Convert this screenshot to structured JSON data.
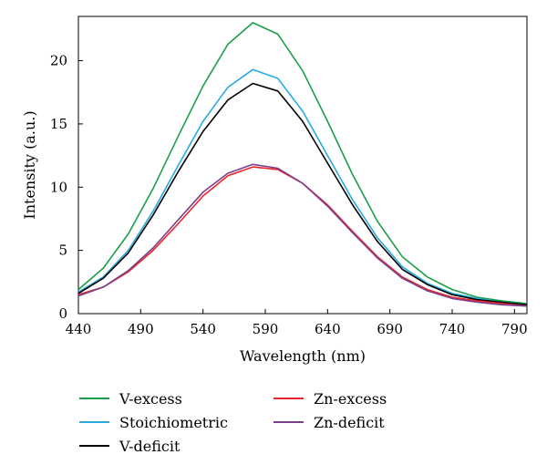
{
  "chart_data": {
    "type": "line",
    "title": "",
    "xlabel": "Wavelength (nm)",
    "ylabel": "Intensity (a.u.)",
    "xlim": [
      440,
      800
    ],
    "ylim": [
      0,
      23.5
    ],
    "xticks": [
      440,
      490,
      540,
      590,
      640,
      690,
      740,
      790
    ],
    "yticks": [
      0,
      5,
      10,
      15,
      20
    ],
    "grid": false,
    "legend_position": "bottom",
    "series": [
      {
        "name": "V-excess",
        "color": "#1a9f4a",
        "x": [
          440,
          460,
          480,
          500,
          520,
          540,
          560,
          580,
          600,
          620,
          640,
          660,
          680,
          700,
          720,
          740,
          760,
          780,
          800
        ],
        "y": [
          1.9,
          3.6,
          6.3,
          9.9,
          14.0,
          18.0,
          21.3,
          23.0,
          22.1,
          19.2,
          15.2,
          11.0,
          7.3,
          4.5,
          2.9,
          1.9,
          1.3,
          1.0,
          0.8
        ]
      },
      {
        "name": "Stoichiometric",
        "color": "#29abe2",
        "x": [
          440,
          460,
          480,
          500,
          520,
          540,
          560,
          580,
          600,
          620,
          640,
          660,
          680,
          700,
          720,
          740,
          760,
          780,
          800
        ],
        "y": [
          1.7,
          2.9,
          5.0,
          8.1,
          11.7,
          15.2,
          17.9,
          19.3,
          18.6,
          16.0,
          12.5,
          9.0,
          6.0,
          3.7,
          2.4,
          1.6,
          1.2,
          0.9,
          0.7
        ]
      },
      {
        "name": "V-deficit",
        "color": "#000000",
        "x": [
          440,
          460,
          480,
          500,
          520,
          540,
          560,
          580,
          600,
          620,
          640,
          660,
          680,
          700,
          720,
          740,
          760,
          780,
          800
        ],
        "y": [
          1.6,
          2.8,
          4.8,
          7.8,
          11.2,
          14.4,
          16.9,
          18.2,
          17.6,
          15.2,
          11.9,
          8.6,
          5.7,
          3.5,
          2.3,
          1.5,
          1.1,
          0.9,
          0.7
        ]
      },
      {
        "name": "Zn-excess",
        "color": "#e8262b",
        "x": [
          440,
          460,
          480,
          500,
          520,
          540,
          560,
          580,
          600,
          620,
          640,
          660,
          680,
          700,
          720,
          740,
          760,
          780,
          800
        ],
        "y": [
          1.5,
          2.1,
          3.3,
          5.0,
          7.1,
          9.3,
          10.9,
          11.6,
          11.4,
          10.3,
          8.6,
          6.5,
          4.5,
          2.9,
          1.9,
          1.3,
          1.0,
          0.8,
          0.6
        ]
      },
      {
        "name": "Zn-deficit",
        "color": "#7b3f8c",
        "x": [
          440,
          460,
          480,
          500,
          520,
          540,
          560,
          580,
          600,
          620,
          640,
          660,
          680,
          700,
          720,
          740,
          760,
          780,
          800
        ],
        "y": [
          1.4,
          2.1,
          3.4,
          5.2,
          7.4,
          9.6,
          11.1,
          11.8,
          11.5,
          10.3,
          8.5,
          6.4,
          4.4,
          2.8,
          1.8,
          1.2,
          0.9,
          0.7,
          0.6
        ]
      }
    ]
  }
}
